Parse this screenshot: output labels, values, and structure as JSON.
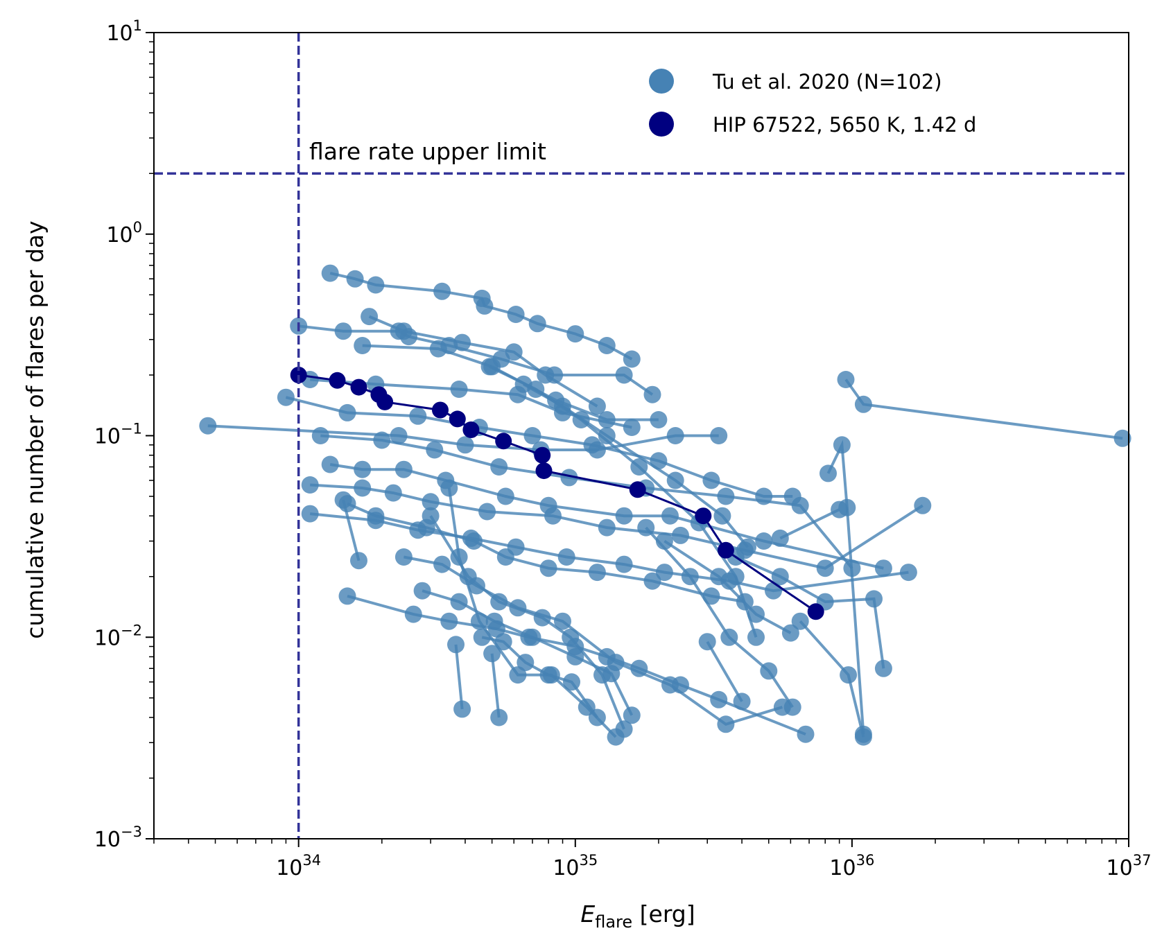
{
  "chart_data": {
    "type": "scatter",
    "xscale": "log",
    "yscale": "log",
    "xlim": [
      3e+33,
      1e+37
    ],
    "ylim": [
      0.001,
      10
    ],
    "xlabel_main": "E",
    "xlabel_sub": "flare",
    "xlabel_unit": " [erg]",
    "ylabel": "cumulative number of flares per day",
    "x_ticks": [
      {
        "base": "10",
        "exp": "34",
        "value": 1e+34
      },
      {
        "base": "10",
        "exp": "35",
        "value": 1e+35
      },
      {
        "base": "10",
        "exp": "36",
        "value": 1e+36
      },
      {
        "base": "10",
        "exp": "37",
        "value": 1e+37
      }
    ],
    "y_ticks": [
      {
        "base": "10",
        "exp": "1",
        "value": 10
      },
      {
        "base": "10",
        "exp": "0",
        "value": 1
      },
      {
        "base": "10",
        "exp": "−1",
        "value": 0.1
      },
      {
        "base": "10",
        "exp": "−2",
        "value": 0.01
      },
      {
        "base": "10",
        "exp": "−3",
        "value": 0.001
      }
    ],
    "legend": [
      {
        "label": "Tu et al. 2020 (N=102)",
        "color": "#4682b4"
      },
      {
        "label": "HIP 67522, 5650 K, 1.42 d",
        "color": "#000080"
      }
    ],
    "annotation": "flare rate upper limit",
    "reference_lines": {
      "vertical_x": 1e+34,
      "horizontal_y": 2.0,
      "color": "#333399"
    },
    "series": [
      {
        "name": "HIP 67522, 5650 K, 1.42 d",
        "color": "#000080",
        "x": [
          1e+34,
          1.38e+34,
          1.65e+34,
          1.95e+34,
          2.05e+34,
          3.25e+34,
          3.75e+34,
          4.2e+34,
          5.5e+34,
          7.6e+34,
          7.7e+34,
          1.68e+35,
          2.9e+35,
          3.5e+35,
          7.4e+35
        ],
        "y": [
          0.2,
          0.188,
          0.174,
          0.16,
          0.147,
          0.134,
          0.121,
          0.107,
          0.094,
          0.08,
          0.067,
          0.054,
          0.04,
          0.027,
          0.0134
        ]
      },
      {
        "name": "Tu et al. 2020",
        "color": "#4682b4",
        "x": [
          1.3e+34,
          1.6e+34,
          1.9e+34,
          3.3e+34,
          4.6e+34,
          4.7e+34,
          6.1e+34,
          7.3e+34,
          1e+35,
          1.3e+35,
          1.6e+35
        ],
        "y": [
          0.64,
          0.6,
          0.56,
          0.52,
          0.48,
          0.44,
          0.4,
          0.36,
          0.32,
          0.28,
          0.24
        ]
      },
      {
        "name": "Tu et al. 2020",
        "color": "#4682b4",
        "x": [
          1e+34,
          1.45e+34,
          2.3e+34,
          2.5e+34,
          3.5e+34,
          5.4e+34,
          8.4e+34,
          1.5e+35,
          1.9e+35
        ],
        "y": [
          0.35,
          0.33,
          0.33,
          0.31,
          0.28,
          0.24,
          0.2,
          0.2,
          0.16
        ]
      },
      {
        "name": "Tu et al. 2020",
        "color": "#4682b4",
        "x": [
          1.8e+34,
          2.4e+34,
          3.9e+34,
          6e+34,
          7.8e+34,
          1.2e+35
        ],
        "y": [
          0.39,
          0.33,
          0.29,
          0.26,
          0.2,
          0.14
        ]
      },
      {
        "name": "Tu et al. 2020",
        "color": "#4682b4",
        "x": [
          1.7e+34,
          3.2e+34,
          5e+34,
          8.5e+34,
          1.3e+35,
          2e+35
        ],
        "y": [
          0.28,
          0.27,
          0.22,
          0.15,
          0.12,
          0.12
        ]
      },
      {
        "name": "Tu et al. 2020",
        "color": "#4682b4",
        "x": [
          1.1e+34,
          1.9e+34,
          3.8e+34,
          6.2e+34,
          9e+34,
          1.6e+35
        ],
        "y": [
          0.19,
          0.18,
          0.17,
          0.16,
          0.13,
          0.11
        ]
      },
      {
        "name": "Tu et al. 2020",
        "color": "#4682b4",
        "x": [
          9e+33,
          1.5e+34,
          2.7e+34,
          4.5e+34,
          7e+34,
          1.15e+35,
          2e+35,
          3.1e+35,
          4.8e+35,
          6.1e+35
        ],
        "y": [
          0.155,
          0.13,
          0.125,
          0.11,
          0.1,
          0.09,
          0.075,
          0.06,
          0.05,
          0.05
        ]
      },
      {
        "name": "Tu et al. 2020",
        "color": "#4682b4",
        "x": [
          4.7e+33,
          2.3e+34,
          4e+34,
          7.5e+34,
          1.2e+35,
          2.3e+35,
          3.3e+35
        ],
        "y": [
          0.112,
          0.1,
          0.09,
          0.085,
          0.085,
          0.1,
          0.1
        ]
      },
      {
        "name": "Tu et al. 2020",
        "color": "#4682b4",
        "x": [
          1.2e+34,
          2e+34,
          3.1e+34,
          5.3e+34,
          9.5e+34,
          1.8e+35,
          3.5e+35,
          6.5e+35,
          1e+36
        ],
        "y": [
          0.1,
          0.095,
          0.085,
          0.07,
          0.062,
          0.055,
          0.05,
          0.045,
          0.022
        ]
      },
      {
        "name": "Tu et al. 2020",
        "color": "#4682b4",
        "x": [
          1.3e+34,
          1.7e+34,
          2.4e+34,
          3.4e+34,
          5.6e+34,
          8e+34,
          1.5e+35,
          2.2e+35,
          4.8e+35,
          1.3e+36
        ],
        "y": [
          0.072,
          0.068,
          0.068,
          0.06,
          0.05,
          0.045,
          0.04,
          0.04,
          0.03,
          0.022
        ]
      },
      {
        "name": "Tu et al. 2020",
        "color": "#4682b4",
        "x": [
          1.1e+34,
          1.7e+34,
          2.2e+34,
          3e+34,
          4.8e+34,
          8.3e+34,
          1.3e+35,
          2.4e+35,
          4.1e+35,
          8e+35,
          1.8e+36
        ],
        "y": [
          0.057,
          0.055,
          0.052,
          0.047,
          0.042,
          0.04,
          0.035,
          0.032,
          0.027,
          0.022,
          0.045
        ]
      },
      {
        "name": "Tu et al. 2020",
        "color": "#4682b4",
        "x": [
          1.1e+34,
          1.9e+34,
          2.7e+34,
          4.2e+34,
          6.1e+34,
          9.3e+34,
          1.5e+35,
          2.1e+35,
          3.6e+35,
          5.2e+35,
          1.6e+36
        ],
        "y": [
          0.041,
          0.038,
          0.034,
          0.031,
          0.028,
          0.025,
          0.023,
          0.021,
          0.019,
          0.017,
          0.021
        ]
      },
      {
        "name": "Tu et al. 2020",
        "color": "#4682b4",
        "x": [
          1.5e+34,
          1.9e+34,
          2.9e+34,
          4.3e+34,
          5.6e+34,
          8e+34,
          1.2e+35,
          1.9e+35,
          3.1e+35,
          4.1e+35
        ],
        "y": [
          0.046,
          0.04,
          0.035,
          0.03,
          0.025,
          0.022,
          0.021,
          0.019,
          0.016,
          0.015
        ]
      },
      {
        "name": "Tu et al. 2020",
        "color": "#4682b4",
        "x": [
          1.5e+34,
          2.6e+34,
          3.5e+34,
          5.2e+34,
          6.8e+34,
          1e+35,
          1.3e+35,
          1.7e+35,
          2.4e+35,
          3.3e+35,
          6.8e+35
        ],
        "y": [
          0.016,
          0.013,
          0.012,
          0.011,
          0.01,
          0.009,
          0.008,
          0.007,
          0.0058,
          0.0049,
          0.0033
        ]
      },
      {
        "name": "Tu et al. 2020",
        "color": "#4682b4",
        "x": [
          2.4e+34,
          3.3e+34,
          4.4e+34,
          6.2e+34,
          9e+34,
          1.4e+35,
          2.2e+35,
          3.5e+35,
          5.6e+35
        ],
        "y": [
          0.025,
          0.023,
          0.018,
          0.014,
          0.012,
          0.0075,
          0.0058,
          0.0037,
          0.0045
        ]
      },
      {
        "name": "Tu et al. 2020",
        "color": "#4682b4",
        "x": [
          2.8e+34,
          3.8e+34,
          5.1e+34,
          7e+34,
          1e+35,
          1.35e+35,
          1.6e+35
        ],
        "y": [
          0.017,
          0.015,
          0.012,
          0.01,
          0.008,
          0.0066,
          0.0041
        ]
      },
      {
        "name": "Tu et al. 2020",
        "color": "#4682b4",
        "x": [
          3e+34,
          4.1e+34,
          5.3e+34,
          7.6e+34,
          9.6e+34,
          1.25e+35,
          1.5e+35
        ],
        "y": [
          0.04,
          0.02,
          0.015,
          0.0125,
          0.01,
          0.0065,
          0.0035
        ]
      },
      {
        "name": "Tu et al. 2020",
        "color": "#4682b4",
        "x": [
          3.5e+34,
          3.8e+34,
          4.5e+34,
          6.2e+34,
          8.2e+34,
          1.1e+35,
          1.4e+35
        ],
        "y": [
          0.055,
          0.025,
          0.012,
          0.0065,
          0.0065,
          0.0045,
          0.0032
        ]
      },
      {
        "name": "Tu et al. 2020",
        "color": "#4682b4",
        "x": [
          4.6e+34,
          5.5e+34,
          6.6e+34,
          8e+34,
          9.7e+34,
          1.2e+35
        ],
        "y": [
          0.01,
          0.0095,
          0.0075,
          0.0065,
          0.006,
          0.004
        ]
      },
      {
        "name": "Tu et al. 2020",
        "color": "#4682b4",
        "x": [
          3.7e+34,
          3.9e+34
        ],
        "y": [
          0.0092,
          0.0044
        ]
      },
      {
        "name": "Tu et al. 2020",
        "color": "#4682b4",
        "x": [
          5e+34,
          5.3e+34
        ],
        "y": [
          0.0083,
          0.004
        ]
      },
      {
        "name": "Tu et al. 2020",
        "color": "#4682b4",
        "x": [
          1.45e+34,
          1.65e+34
        ],
        "y": [
          0.048,
          0.024
        ]
      },
      {
        "name": "Tu et al. 2020",
        "color": "#4682b4",
        "x": [
          6.5e+34,
          9e+34,
          1.3e+35,
          2.3e+35,
          3.4e+35,
          4.2e+35
        ],
        "y": [
          0.18,
          0.14,
          0.1,
          0.06,
          0.04,
          0.028
        ]
      },
      {
        "name": "Tu et al. 2020",
        "color": "#4682b4",
        "x": [
          4.9e+34,
          7.2e+34,
          1.05e+35,
          1.7e+35,
          2.8e+35,
          3.8e+35,
          4.5e+35
        ],
        "y": [
          0.22,
          0.17,
          0.12,
          0.07,
          0.037,
          0.02,
          0.01
        ]
      },
      {
        "name": "Tu et al. 2020",
        "color": "#4682b4",
        "x": [
          1.8e+35,
          2.6e+35,
          3.6e+35,
          5e+35,
          6.1e+35
        ],
        "y": [
          0.035,
          0.02,
          0.01,
          0.0068,
          0.0045
        ]
      },
      {
        "name": "Tu et al. 2020",
        "color": "#4682b4",
        "x": [
          3e+35,
          4e+35
        ],
        "y": [
          0.0095,
          0.0048
        ]
      },
      {
        "name": "Tu et al. 2020",
        "color": "#4682b4",
        "x": [
          9.5e+35,
          1.1e+36,
          9.5e+36
        ],
        "y": [
          0.19,
          0.143,
          0.097
        ]
      },
      {
        "name": "Tu et al. 2020",
        "color": "#4682b4",
        "x": [
          8.2e+35,
          9.2e+35,
          9.6e+35,
          1.1e+36
        ],
        "y": [
          0.065,
          0.09,
          0.044,
          0.0033
        ]
      },
      {
        "name": "Tu et al. 2020",
        "color": "#4682b4",
        "x": [
          3.8e+35,
          5.5e+35,
          8e+35,
          1.2e+36,
          1.3e+36
        ],
        "y": [
          0.025,
          0.02,
          0.015,
          0.0155,
          0.007
        ]
      },
      {
        "name": "Tu et al. 2020",
        "color": "#4682b4",
        "x": [
          6.5e+35,
          9.7e+35,
          1.1e+36
        ],
        "y": [
          0.012,
          0.0065,
          0.0032
        ]
      },
      {
        "name": "Tu et al. 2020",
        "color": "#4682b4",
        "x": [
          2.1e+35,
          3.3e+35,
          4.5e+35,
          6e+35
        ],
        "y": [
          0.03,
          0.02,
          0.013,
          0.0105
        ]
      },
      {
        "name": "Tu et al. 2020",
        "color": "#4682b4",
        "x": [
          5.5e+35,
          9e+35
        ],
        "y": [
          0.031,
          0.043
        ]
      }
    ]
  }
}
